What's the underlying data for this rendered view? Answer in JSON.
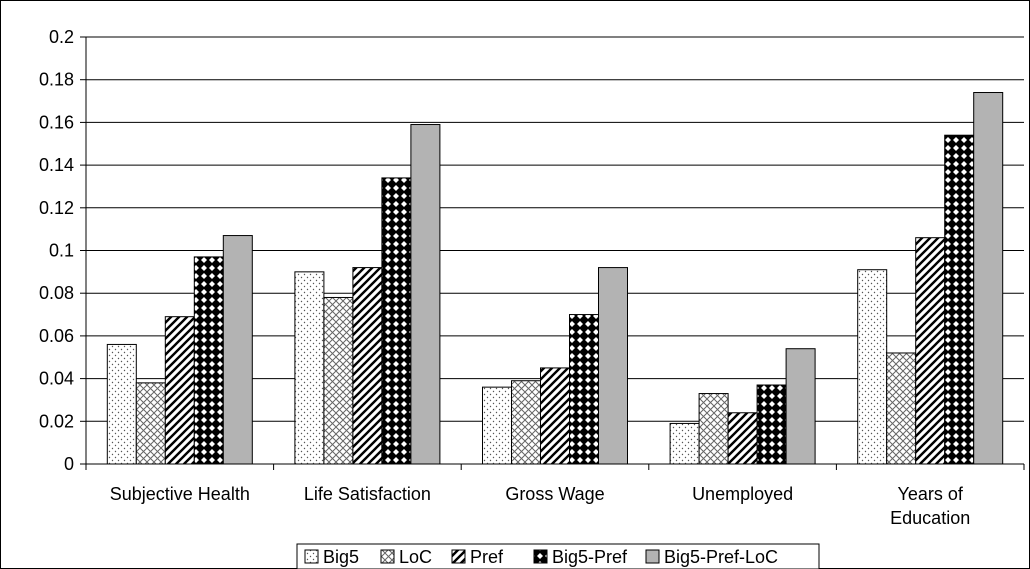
{
  "chart_data": {
    "type": "bar",
    "categories": [
      "Subjective Health",
      "Life Satisfaction",
      "Gross Wage",
      "Unemployed",
      "Years of Education"
    ],
    "category_lines": [
      [
        "Subjective Health"
      ],
      [
        "Life Satisfaction"
      ],
      [
        "Gross Wage"
      ],
      [
        "Unemployed"
      ],
      [
        "Years of",
        "Education"
      ]
    ],
    "series": [
      {
        "name": "Big5",
        "values": [
          0.056,
          0.09,
          0.036,
          0.019,
          0.091
        ],
        "pattern": "dots",
        "color": "#ffffff"
      },
      {
        "name": "LoC",
        "values": [
          0.038,
          0.078,
          0.039,
          0.033,
          0.052
        ],
        "pattern": "crosshatch",
        "color": "#ffffff"
      },
      {
        "name": "Pref",
        "values": [
          0.069,
          0.092,
          0.045,
          0.024,
          0.106
        ],
        "pattern": "diagonal",
        "color": "#ffffff"
      },
      {
        "name": "Big5-Pref",
        "values": [
          0.097,
          0.134,
          0.07,
          0.037,
          0.154
        ],
        "pattern": "checker",
        "color": "#000000"
      },
      {
        "name": "Big5-Pref-LoC",
        "values": [
          0.107,
          0.159,
          0.092,
          0.054,
          0.174
        ],
        "pattern": "solid",
        "color": "#b3b3b3"
      }
    ],
    "yticks": [
      "0",
      "0.02",
      "0.04",
      "0.06",
      "0.08",
      "0.1",
      "0.12",
      "0.14",
      "0.16",
      "0.18",
      "0.2"
    ],
    "ylim": [
      0,
      0.2
    ],
    "grid": true,
    "legend_position": "bottom",
    "title": "",
    "xlabel": "",
    "ylabel": ""
  }
}
